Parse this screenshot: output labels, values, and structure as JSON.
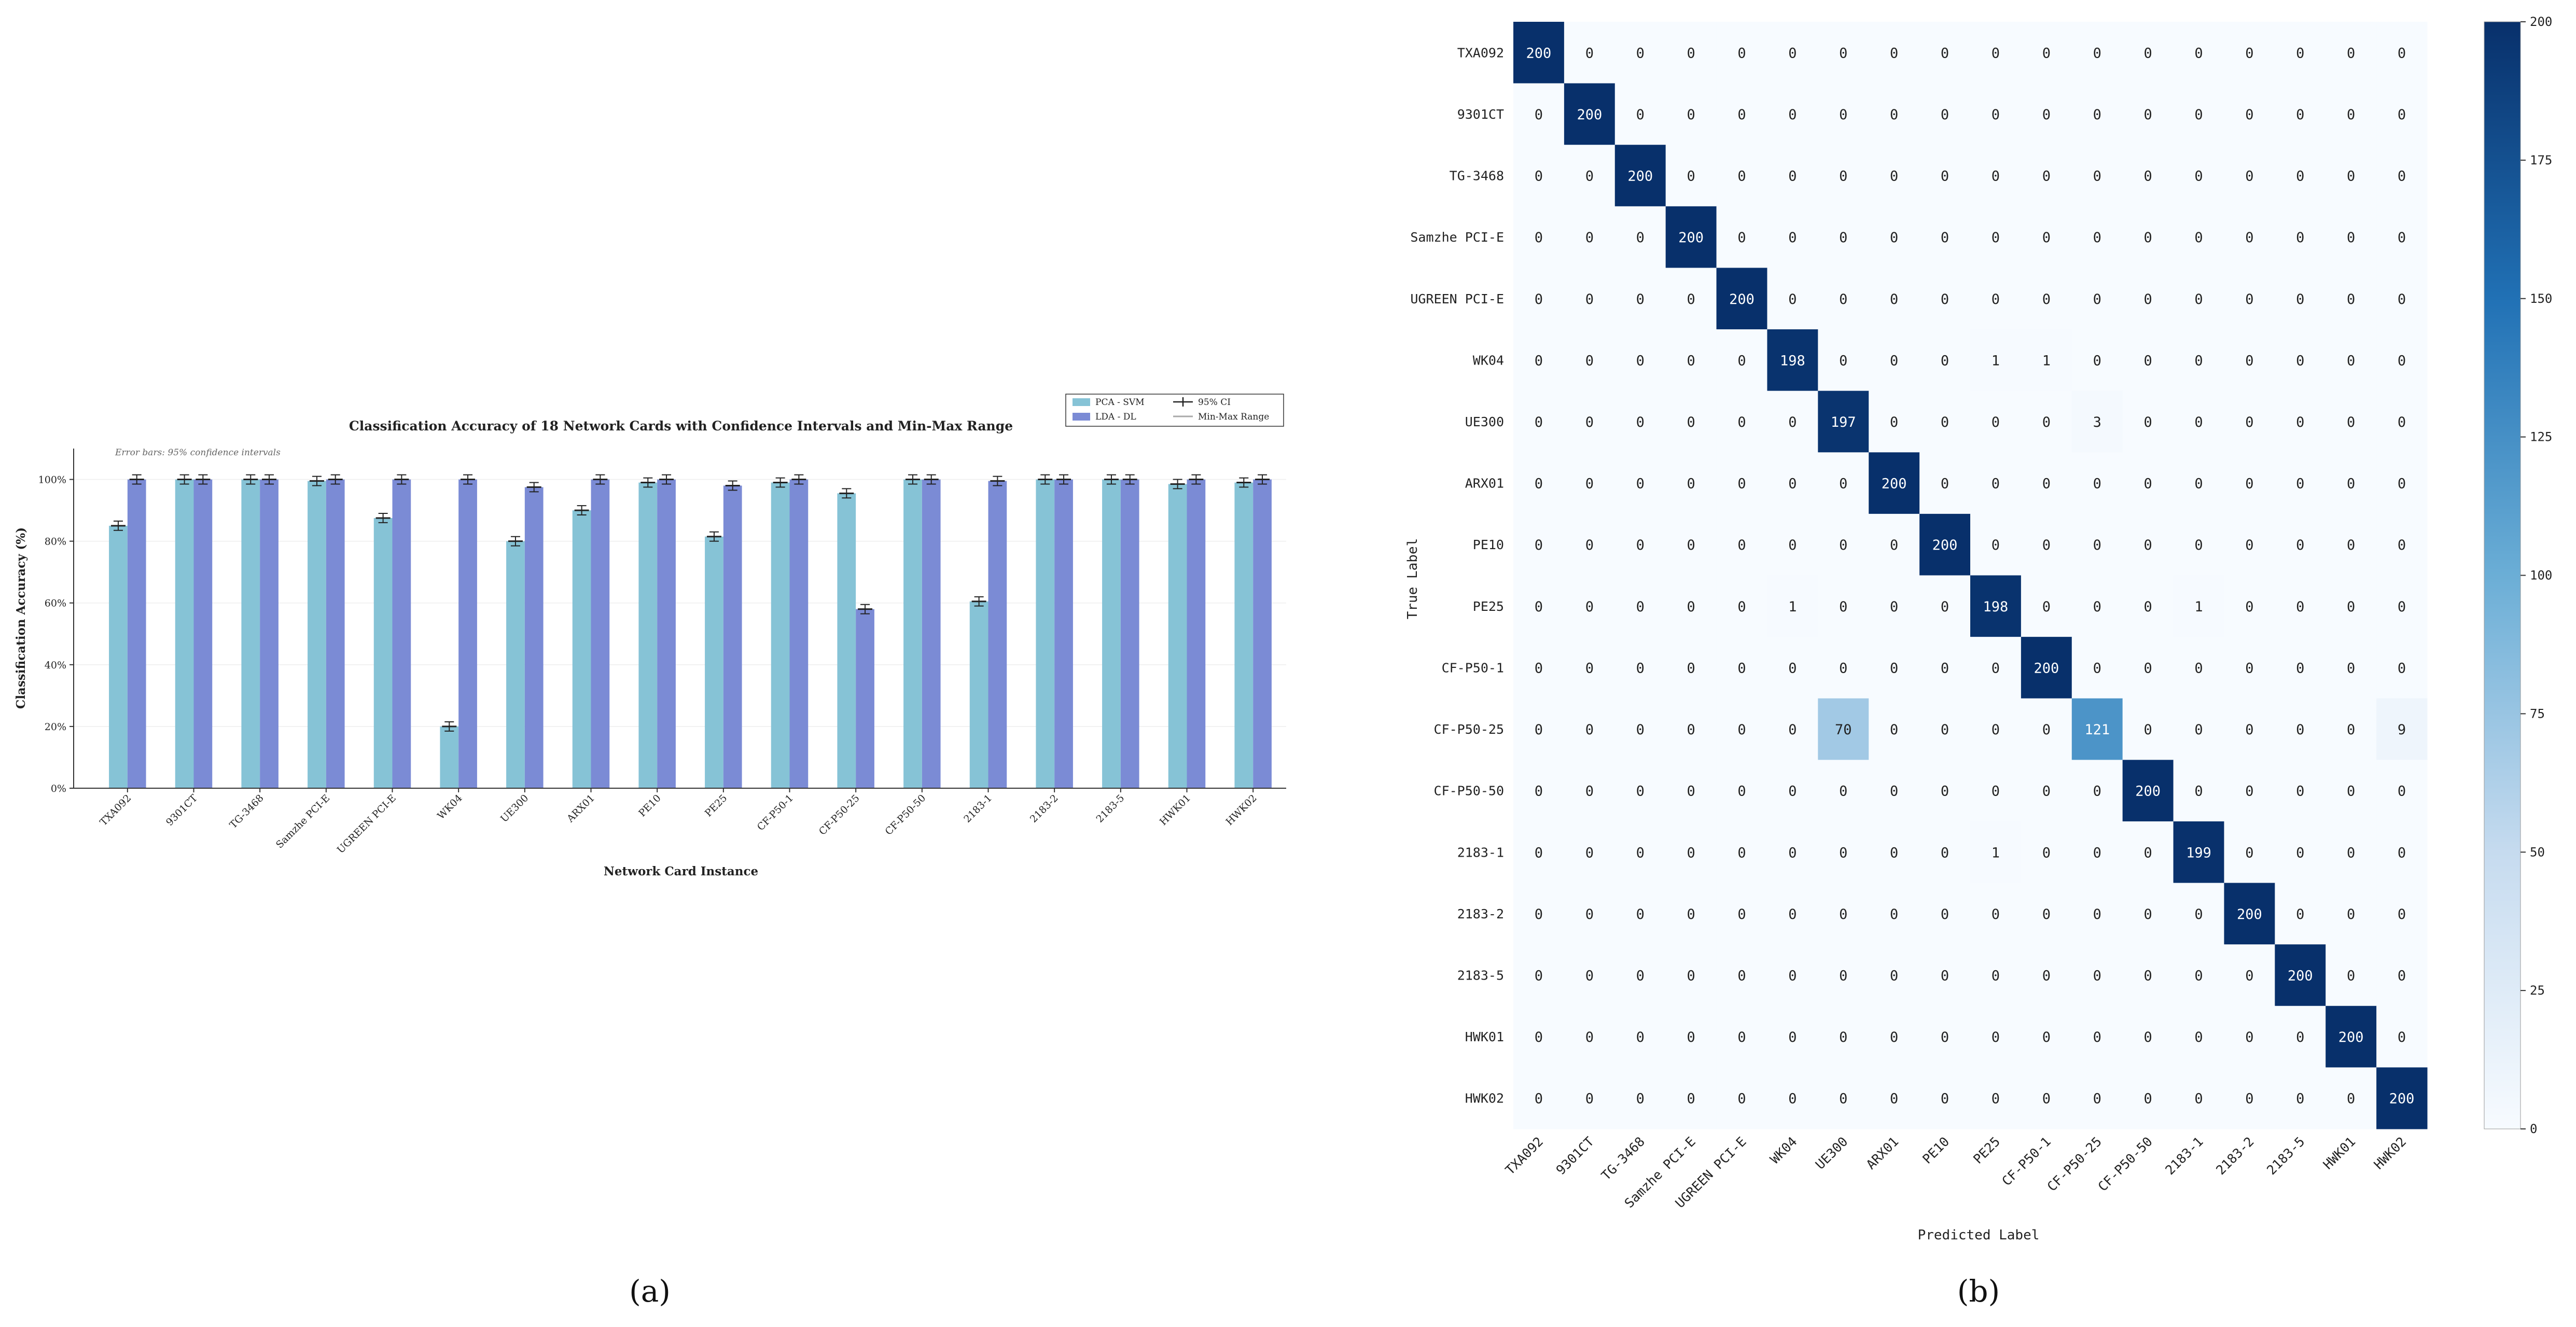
{
  "panel_labels": {
    "a": "(a)",
    "b": "(b)"
  },
  "colors": {
    "pca_svm": "#86c3d6",
    "lda_dl": "#7b8bd5",
    "heat_low": "#f7fbff",
    "heat_high": "#08306b",
    "axis": "#333333"
  },
  "chart_data": [
    {
      "type": "bar",
      "title": "Classification Accuracy of 18 Network Cards with Confidence Intervals and Min-Max Range",
      "note": "Error bars: 95% confidence intervals",
      "xlabel": "Network Card Instance",
      "ylabel": "Classification Accuracy (%)",
      "ylim": [
        0,
        110
      ],
      "ytick_labels": [
        "0%",
        "20%",
        "40%",
        "60%",
        "80%",
        "100%"
      ],
      "grid": true,
      "legend_position": "top-right",
      "legend": {
        "ci": "95% CI",
        "range": "Min-Max Range"
      },
      "categories": [
        "TXA092",
        "9301CT",
        "TG-3468",
        "Samzhe PCI-E",
        "UGREEN PCI-E",
        "WK04",
        "UE300",
        "ARX01",
        "PE10",
        "PE25",
        "CF-P50-1",
        "CF-P50-25",
        "CF-P50-50",
        "2183-1",
        "2183-2",
        "2183-5",
        "HWK01",
        "HWK02"
      ],
      "series": [
        {
          "name": "PCA - SVM",
          "values": [
            85,
            100,
            100,
            99.5,
            87.5,
            20,
            80,
            90,
            99,
            81.5,
            99,
            95.5,
            100,
            60.5,
            100,
            100,
            98.5,
            99
          ]
        },
        {
          "name": "LDA - DL",
          "values": [
            100,
            100,
            100,
            100,
            100,
            100,
            97.5,
            100,
            100,
            98,
            100,
            58,
            100,
            99.5,
            100,
            100,
            100,
            100
          ]
        }
      ]
    },
    {
      "type": "heatmap",
      "xlabel": "Predicted Label",
      "ylabel": "True Label",
      "labels": [
        "TXA092",
        "9301CT",
        "TG-3468",
        "Samzhe PCI-E",
        "UGREEN PCI-E",
        "WK04",
        "UE300",
        "ARX01",
        "PE10",
        "PE25",
        "CF-P50-1",
        "CF-P50-25",
        "CF-P50-50",
        "2183-1",
        "2183-2",
        "2183-5",
        "HWK01",
        "HWK02"
      ],
      "colorbar": {
        "min": 0,
        "max": 200,
        "ticks": [
          "0",
          "25",
          "50",
          "75",
          "100",
          "125",
          "150",
          "175",
          "200"
        ]
      },
      "matrix": [
        [
          200,
          0,
          0,
          0,
          0,
          0,
          0,
          0,
          0,
          0,
          0,
          0,
          0,
          0,
          0,
          0,
          0,
          0
        ],
        [
          0,
          200,
          0,
          0,
          0,
          0,
          0,
          0,
          0,
          0,
          0,
          0,
          0,
          0,
          0,
          0,
          0,
          0
        ],
        [
          0,
          0,
          200,
          0,
          0,
          0,
          0,
          0,
          0,
          0,
          0,
          0,
          0,
          0,
          0,
          0,
          0,
          0
        ],
        [
          0,
          0,
          0,
          200,
          0,
          0,
          0,
          0,
          0,
          0,
          0,
          0,
          0,
          0,
          0,
          0,
          0,
          0
        ],
        [
          0,
          0,
          0,
          0,
          200,
          0,
          0,
          0,
          0,
          0,
          0,
          0,
          0,
          0,
          0,
          0,
          0,
          0
        ],
        [
          0,
          0,
          0,
          0,
          0,
          198,
          0,
          0,
          0,
          1,
          1,
          0,
          0,
          0,
          0,
          0,
          0,
          0
        ],
        [
          0,
          0,
          0,
          0,
          0,
          0,
          197,
          0,
          0,
          0,
          0,
          3,
          0,
          0,
          0,
          0,
          0,
          0
        ],
        [
          0,
          0,
          0,
          0,
          0,
          0,
          0,
          200,
          0,
          0,
          0,
          0,
          0,
          0,
          0,
          0,
          0,
          0
        ],
        [
          0,
          0,
          0,
          0,
          0,
          0,
          0,
          0,
          200,
          0,
          0,
          0,
          0,
          0,
          0,
          0,
          0,
          0
        ],
        [
          0,
          0,
          0,
          0,
          0,
          1,
          0,
          0,
          0,
          198,
          0,
          0,
          0,
          1,
          0,
          0,
          0,
          0
        ],
        [
          0,
          0,
          0,
          0,
          0,
          0,
          0,
          0,
          0,
          0,
          200,
          0,
          0,
          0,
          0,
          0,
          0,
          0
        ],
        [
          0,
          0,
          0,
          0,
          0,
          0,
          70,
          0,
          0,
          0,
          0,
          121,
          0,
          0,
          0,
          0,
          0,
          9
        ],
        [
          0,
          0,
          0,
          0,
          0,
          0,
          0,
          0,
          0,
          0,
          0,
          0,
          200,
          0,
          0,
          0,
          0,
          0
        ],
        [
          0,
          0,
          0,
          0,
          0,
          0,
          0,
          0,
          0,
          1,
          0,
          0,
          0,
          199,
          0,
          0,
          0,
          0
        ],
        [
          0,
          0,
          0,
          0,
          0,
          0,
          0,
          0,
          0,
          0,
          0,
          0,
          0,
          0,
          200,
          0,
          0,
          0
        ],
        [
          0,
          0,
          0,
          0,
          0,
          0,
          0,
          0,
          0,
          0,
          0,
          0,
          0,
          0,
          0,
          200,
          0,
          0
        ],
        [
          0,
          0,
          0,
          0,
          0,
          0,
          0,
          0,
          0,
          0,
          0,
          0,
          0,
          0,
          0,
          0,
          200,
          0
        ],
        [
          0,
          0,
          0,
          0,
          0,
          0,
          0,
          0,
          0,
          0,
          0,
          0,
          0,
          0,
          0,
          0,
          0,
          200
        ]
      ]
    }
  ]
}
